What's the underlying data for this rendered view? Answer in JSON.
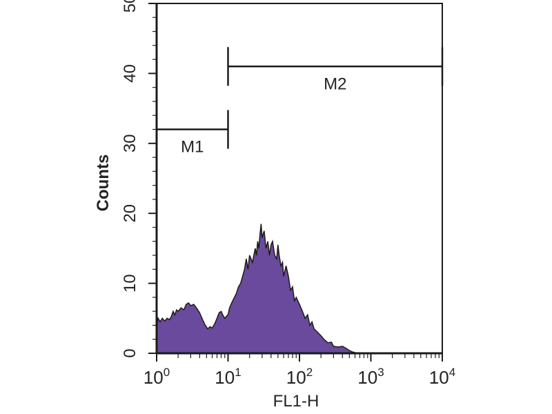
{
  "chart_data": {
    "type": "area",
    "xlabel": "FL1-H",
    "ylabel": "Counts",
    "x_scale": "log",
    "xlim": [
      1,
      10000
    ],
    "ylim": [
      0,
      50
    ],
    "grid": false,
    "fill_color": "#6a4a9c",
    "line_color": "#1a1a1a",
    "x_ticks": [
      {
        "base": "10",
        "exp": "0",
        "value": 1
      },
      {
        "base": "10",
        "exp": "1",
        "value": 10
      },
      {
        "base": "10",
        "exp": "2",
        "value": 100
      },
      {
        "base": "10",
        "exp": "3",
        "value": 1000
      },
      {
        "base": "10",
        "exp": "4",
        "value": 10000
      }
    ],
    "y_ticks": [
      "0",
      "10",
      "20",
      "30",
      "40",
      "50"
    ],
    "markers": [
      {
        "label": "M1",
        "from": 1,
        "to": 10,
        "y": 32
      },
      {
        "label": "M2",
        "from": 10,
        "to": 10000,
        "y": 41
      }
    ],
    "series": [
      {
        "values": [
          [
            1.0,
            4
          ],
          [
            1.05,
            5
          ],
          [
            1.12,
            4.5
          ],
          [
            1.2,
            5
          ],
          [
            1.3,
            4.6
          ],
          [
            1.4,
            5
          ],
          [
            1.5,
            4.8
          ],
          [
            1.6,
            5.2
          ],
          [
            1.7,
            6
          ],
          [
            1.8,
            5.5
          ],
          [
            1.9,
            6.2
          ],
          [
            2.0,
            6
          ],
          [
            2.2,
            6.5
          ],
          [
            2.4,
            6.2
          ],
          [
            2.6,
            7
          ],
          [
            2.8,
            7.2
          ],
          [
            3.0,
            6.8
          ],
          [
            3.3,
            7
          ],
          [
            3.6,
            6.5
          ],
          [
            4.0,
            5.8
          ],
          [
            4.4,
            4.8
          ],
          [
            4.8,
            4
          ],
          [
            5.2,
            3.5
          ],
          [
            5.6,
            3.8
          ],
          [
            6.0,
            3.6
          ],
          [
            6.5,
            4.2
          ],
          [
            7.0,
            5
          ],
          [
            7.5,
            5.8
          ],
          [
            8.0,
            6
          ],
          [
            8.5,
            5.4
          ],
          [
            9.0,
            5
          ],
          [
            9.5,
            5.3
          ],
          [
            10,
            5.5
          ],
          [
            10.5,
            6.5
          ],
          [
            11,
            7
          ],
          [
            12,
            7.8
          ],
          [
            13,
            8.5
          ],
          [
            14,
            9.5
          ],
          [
            15,
            10
          ],
          [
            16,
            11
          ],
          [
            17,
            12
          ],
          [
            18,
            13.5
          ],
          [
            19,
            12
          ],
          [
            20,
            14
          ],
          [
            22,
            13
          ],
          [
            24,
            15
          ],
          [
            25,
            14
          ],
          [
            26,
            16
          ],
          [
            27,
            15
          ],
          [
            28,
            17
          ],
          [
            29,
            18.5
          ],
          [
            30,
            16.5
          ],
          [
            32,
            17.5
          ],
          [
            34,
            15
          ],
          [
            36,
            16
          ],
          [
            38,
            14
          ],
          [
            40,
            15.5
          ],
          [
            42,
            16
          ],
          [
            45,
            14
          ],
          [
            48,
            13.5
          ],
          [
            50,
            15.5
          ],
          [
            52,
            14
          ],
          [
            55,
            12.5
          ],
          [
            58,
            13
          ],
          [
            60,
            11
          ],
          [
            65,
            12.5
          ],
          [
            70,
            11
          ],
          [
            75,
            9
          ],
          [
            80,
            9.5
          ],
          [
            85,
            7.5
          ],
          [
            90,
            8
          ],
          [
            100,
            7
          ],
          [
            110,
            6
          ],
          [
            120,
            5
          ],
          [
            130,
            5.5
          ],
          [
            140,
            4
          ],
          [
            150,
            4.5
          ],
          [
            160,
            3.5
          ],
          [
            180,
            3
          ],
          [
            200,
            2.5
          ],
          [
            220,
            2
          ],
          [
            250,
            1.5
          ],
          [
            280,
            1.6
          ],
          [
            300,
            1
          ],
          [
            350,
            0.9
          ],
          [
            400,
            1
          ],
          [
            450,
            0.7
          ],
          [
            500,
            0.4
          ],
          [
            550,
            0.2
          ],
          [
            600,
            0.1
          ],
          [
            700,
            0
          ],
          [
            1000,
            0
          ],
          [
            10000,
            0
          ]
        ]
      }
    ]
  }
}
